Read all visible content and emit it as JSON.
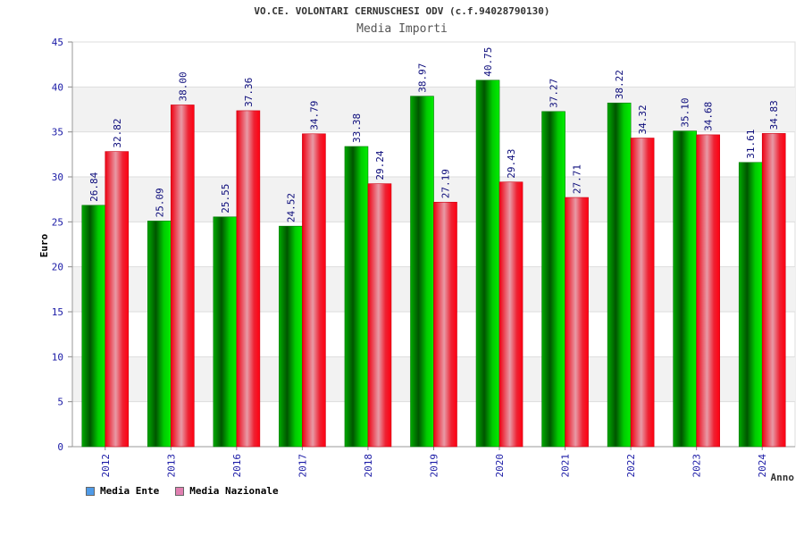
{
  "chart_data": {
    "type": "bar",
    "title": "VO.CE. VOLONTARI CERNUSCHESI ODV (c.f.94028790130)",
    "subtitle": "Media Importi",
    "xlabel": "Anno",
    "ylabel": "Euro",
    "ylim": [
      0,
      45
    ],
    "yticks": [
      0,
      5,
      10,
      15,
      20,
      25,
      30,
      35,
      40,
      45
    ],
    "grid": true,
    "legend_position": "bottom-left",
    "categories": [
      "2012",
      "2013",
      "2016",
      "2017",
      "2018",
      "2019",
      "2020",
      "2021",
      "2022",
      "2023",
      "2024"
    ],
    "series": [
      {
        "name": "Media Ente",
        "color": "#00bb00",
        "legend_color": "#4f9be8",
        "values": [
          26.84,
          25.09,
          25.55,
          24.52,
          33.38,
          38.97,
          40.75,
          37.27,
          38.22,
          35.1,
          31.61
        ],
        "labels": [
          "26.84",
          "25.09",
          "25.55",
          "24.52",
          "33.38",
          "38.97",
          "40.75",
          "37.27",
          "38.22",
          "35.10",
          "31.61"
        ]
      },
      {
        "name": "Media Nazionale",
        "color": "#ee1122",
        "legend_color": "#e07fb0",
        "values": [
          32.82,
          38.0,
          37.36,
          34.79,
          29.24,
          27.19,
          29.43,
          27.71,
          34.32,
          34.68,
          34.83
        ],
        "labels": [
          "32.82",
          "38.00",
          "37.36",
          "34.79",
          "29.24",
          "27.19",
          "29.43",
          "27.71",
          "34.32",
          "34.68",
          "34.83"
        ]
      }
    ]
  }
}
